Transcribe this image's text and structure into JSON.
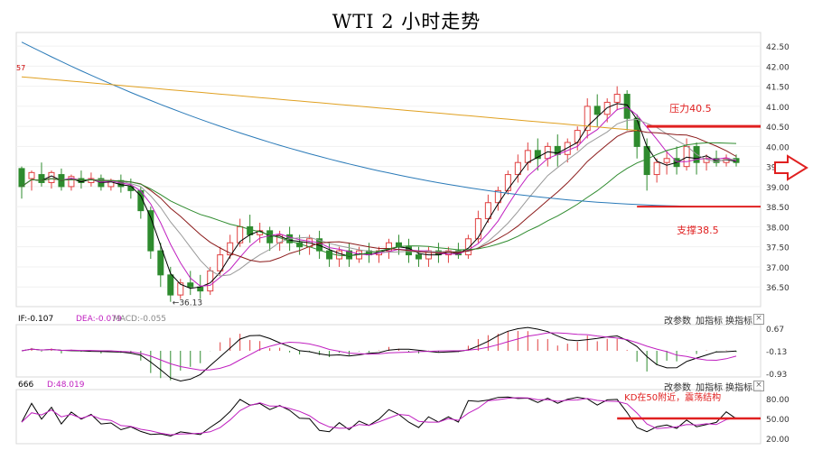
{
  "chart_data": [
    {
      "type": "candlestick",
      "title": "WTI 2 小时走势",
      "ylim": [
        36.1,
        42.75
      ],
      "yticks": [
        "42.50",
        "42.00",
        "41.50",
        "41.00",
        "40.50",
        "40.00",
        "39.50",
        "39.00",
        "38.50",
        "38.00",
        "37.50",
        "37.00",
        "36.50"
      ],
      "edge_label": "57",
      "annotations": {
        "resistance_label": "压力40.5",
        "support_label": "支撑38.5",
        "low_label": "36.13"
      },
      "resistance": 40.5,
      "support": 38.5,
      "candles": [
        [
          39.45,
          39.5,
          39.0,
          38.7
        ],
        [
          39.2,
          39.4,
          39.35,
          38.9
        ],
        [
          39.3,
          39.6,
          39.1,
          39.0
        ],
        [
          39.1,
          39.4,
          39.35,
          38.95
        ],
        [
          39.3,
          39.45,
          39.0,
          38.9
        ],
        [
          39.0,
          39.3,
          39.25,
          38.9
        ],
        [
          39.2,
          39.4,
          39.1,
          38.95
        ],
        [
          39.1,
          39.35,
          39.2,
          39.0
        ],
        [
          39.2,
          39.3,
          39.0,
          38.9
        ],
        [
          39.0,
          39.2,
          39.15,
          38.9
        ],
        [
          39.15,
          39.3,
          39.0,
          38.85
        ],
        [
          39.0,
          39.2,
          38.9,
          38.7
        ],
        [
          38.9,
          39.0,
          38.4,
          38.2
        ],
        [
          38.4,
          38.5,
          37.4,
          37.2
        ],
        [
          37.4,
          37.6,
          36.8,
          36.5
        ],
        [
          36.8,
          37.0,
          36.3,
          36.13
        ],
        [
          36.3,
          36.7,
          36.6,
          36.2
        ],
        [
          36.6,
          36.9,
          36.5,
          36.3
        ],
        [
          36.5,
          36.8,
          36.4,
          36.2
        ],
        [
          36.4,
          37.0,
          36.9,
          36.3
        ],
        [
          36.9,
          37.5,
          37.3,
          36.8
        ],
        [
          37.3,
          37.8,
          37.6,
          37.2
        ],
        [
          37.6,
          38.2,
          38.0,
          37.5
        ],
        [
          38.0,
          38.3,
          37.8,
          37.6
        ],
        [
          37.8,
          38.1,
          37.9,
          37.6
        ],
        [
          37.9,
          38.0,
          37.6,
          37.4
        ],
        [
          37.6,
          37.9,
          37.8,
          37.4
        ],
        [
          37.8,
          38.0,
          37.6,
          37.4
        ],
        [
          37.6,
          37.8,
          37.5,
          37.3
        ],
        [
          37.5,
          37.8,
          37.7,
          37.3
        ],
        [
          37.7,
          37.9,
          37.4,
          37.2
        ],
        [
          37.4,
          37.6,
          37.2,
          37.0
        ],
        [
          37.2,
          37.5,
          37.4,
          37.0
        ],
        [
          37.4,
          37.6,
          37.2,
          37.0
        ],
        [
          37.2,
          37.5,
          37.4,
          37.1
        ],
        [
          37.4,
          37.6,
          37.3,
          37.1
        ],
        [
          37.3,
          37.5,
          37.4,
          37.1
        ],
        [
          37.4,
          37.7,
          37.6,
          37.2
        ],
        [
          37.6,
          37.8,
          37.5,
          37.3
        ],
        [
          37.5,
          37.7,
          37.3,
          37.1
        ],
        [
          37.3,
          37.5,
          37.2,
          37.0
        ],
        [
          37.2,
          37.5,
          37.4,
          37.0
        ],
        [
          37.4,
          37.6,
          37.3,
          37.1
        ],
        [
          37.3,
          37.5,
          37.4,
          37.1
        ],
        [
          37.4,
          37.6,
          37.3,
          37.2
        ],
        [
          37.3,
          37.8,
          37.7,
          37.2
        ],
        [
          37.7,
          38.4,
          38.2,
          37.6
        ],
        [
          38.2,
          38.8,
          38.6,
          38.1
        ],
        [
          38.6,
          39.0,
          38.9,
          38.4
        ],
        [
          38.9,
          39.4,
          39.3,
          38.8
        ],
        [
          39.3,
          39.8,
          39.6,
          39.1
        ],
        [
          39.6,
          40.1,
          39.9,
          39.4
        ],
        [
          39.9,
          40.2,
          39.7,
          39.4
        ],
        [
          39.7,
          40.1,
          40.0,
          39.5
        ],
        [
          40.0,
          40.3,
          39.8,
          39.5
        ],
        [
          39.8,
          40.2,
          40.1,
          39.6
        ],
        [
          40.1,
          40.5,
          40.4,
          39.9
        ],
        [
          40.4,
          41.2,
          41.0,
          40.2
        ],
        [
          41.0,
          41.3,
          40.8,
          40.5
        ],
        [
          40.8,
          41.2,
          41.1,
          40.6
        ],
        [
          41.1,
          41.5,
          41.3,
          40.9
        ],
        [
          41.3,
          41.4,
          40.7,
          40.4
        ],
        [
          40.7,
          40.8,
          40.0,
          39.7
        ],
        [
          40.0,
          40.2,
          39.3,
          38.9
        ],
        [
          39.3,
          39.7,
          39.6,
          39.1
        ],
        [
          39.6,
          39.9,
          39.7,
          39.3
        ],
        [
          39.7,
          40.0,
          39.5,
          39.3
        ],
        [
          39.5,
          40.2,
          40.0,
          39.4
        ],
        [
          40.0,
          40.1,
          39.6,
          39.3
        ],
        [
          39.6,
          39.8,
          39.7,
          39.4
        ],
        [
          39.7,
          39.9,
          39.6,
          39.5
        ],
        [
          39.6,
          39.8,
          39.7,
          39.5
        ],
        [
          39.7,
          39.8,
          39.6,
          39.5
        ]
      ],
      "macd_panel": {
        "label_dif": "IF:-0.107",
        "label_dea": "DEA:-0.079",
        "label_macd": "MACD:-0.055",
        "yticks": [
          "0.67",
          "-0.13",
          "-0.93"
        ]
      },
      "kd_panel": {
        "label_k": "666",
        "label_d": "D:48.019",
        "annotation": "KD在50附近，震荡结构",
        "yticks": [
          "80.00",
          "50.00",
          "20.00"
        ]
      },
      "panel_buttons": [
        "改参数",
        "加指标",
        "换指标"
      ],
      "close_symbol": "×"
    }
  ]
}
